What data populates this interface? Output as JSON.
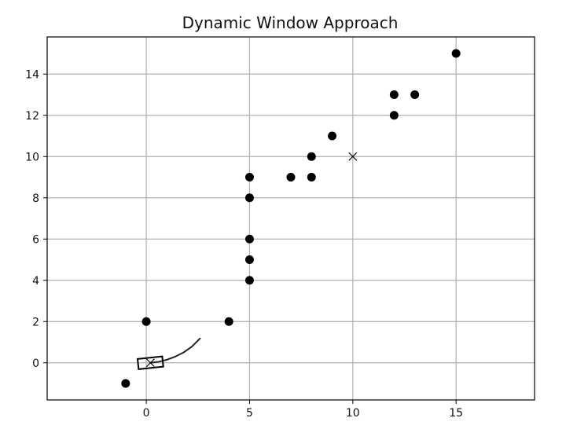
{
  "chart_data": {
    "type": "scatter",
    "title": "Dynamic Window Approach",
    "xlabel": "",
    "ylabel": "",
    "xlim": [
      -4.8,
      18.8
    ],
    "ylim": [
      -1.8,
      15.8
    ],
    "grid": true,
    "x_ticks": [
      0,
      5,
      10,
      15
    ],
    "y_ticks": [
      0,
      2,
      4,
      6,
      8,
      10,
      12,
      14
    ],
    "obstacles": [
      {
        "x": -1,
        "y": -1
      },
      {
        "x": 0,
        "y": 2
      },
      {
        "x": 4,
        "y": 2
      },
      {
        "x": 5,
        "y": 4
      },
      {
        "x": 5,
        "y": 5
      },
      {
        "x": 5,
        "y": 6
      },
      {
        "x": 5,
        "y": 8
      },
      {
        "x": 5,
        "y": 9
      },
      {
        "x": 7,
        "y": 9
      },
      {
        "x": 8,
        "y": 9
      },
      {
        "x": 8,
        "y": 10
      },
      {
        "x": 9,
        "y": 11
      },
      {
        "x": 12,
        "y": 12
      },
      {
        "x": 12,
        "y": 13
      },
      {
        "x": 13,
        "y": 13
      },
      {
        "x": 15,
        "y": 15
      }
    ],
    "goal": {
      "x": 10,
      "y": 10
    },
    "robot": {
      "x": 0.2,
      "y": 0,
      "yaw_deg": 6,
      "length": 1.2,
      "width": 0.5
    },
    "predicted_trajectory": [
      {
        "x": 0.2,
        "y": 0.0
      },
      {
        "x": 0.6,
        "y": 0.05
      },
      {
        "x": 1.0,
        "y": 0.15
      },
      {
        "x": 1.4,
        "y": 0.3
      },
      {
        "x": 1.8,
        "y": 0.5
      },
      {
        "x": 2.2,
        "y": 0.78
      },
      {
        "x": 2.6,
        "y": 1.18
      }
    ],
    "colors": {
      "marker": "#000000",
      "grid": "#b0b0b0",
      "axes": "#000000",
      "trajectory": "#222222"
    }
  }
}
